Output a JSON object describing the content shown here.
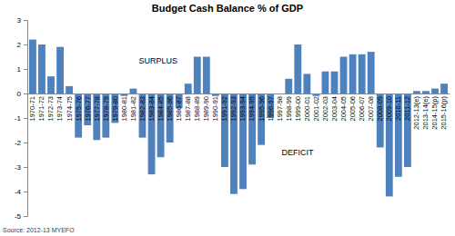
{
  "chart_data": {
    "type": "bar",
    "title": "Budget Cash Balance % of GDP",
    "categories": [
      "1970-71",
      "1971-72",
      "1972-73",
      "1973-74",
      "1974-75",
      "1975-76",
      "1976-77",
      "1977-78",
      "1978-79",
      "1979-80",
      "1980-81",
      "1981-82",
      "1982-83",
      "1983-84",
      "1984-85",
      "1985-86",
      "1986-87",
      "1987-88",
      "1988-89",
      "1989-90",
      "1990-91",
      "1991-92",
      "1992-93",
      "1993-94",
      "1994-95",
      "1995-96",
      "1996-97",
      "1997-98",
      "1998-99",
      "1999-00",
      "2000-01",
      "2001-02",
      "2002-03",
      "2003-04",
      "2004-05",
      "2005-06",
      "2006-07",
      "2007-08",
      "2008-09",
      "2009-10",
      "2010-11",
      "2011-12",
      "2012-13(e)",
      "2013-14(e)",
      "2014-15(p)",
      "2015-16(p)"
    ],
    "values": [
      2.2,
      2.0,
      0.7,
      1.9,
      0.3,
      -1.8,
      -1.3,
      -1.9,
      -1.8,
      -1.2,
      -0.1,
      0.2,
      -1.8,
      -3.3,
      -2.6,
      -2.0,
      -0.6,
      0.4,
      1.5,
      1.5,
      -0.1,
      -3.0,
      -4.1,
      -3.9,
      -2.9,
      -2.1,
      -1.0,
      0.0,
      0.6,
      2.0,
      0.8,
      -0.1,
      0.9,
      0.9,
      1.5,
      1.6,
      1.6,
      1.7,
      -2.2,
      -4.2,
      -3.4,
      -3.0,
      0.1,
      0.1,
      0.2,
      0.4
    ],
    "color": "#4f81bd",
    "ylim": [
      -5,
      3
    ],
    "yticks": [
      -5,
      -4,
      -3,
      -2,
      -1,
      0,
      1,
      2,
      3
    ],
    "grid": false,
    "annotations": [
      "SURPLUS",
      "DEFICIT"
    ],
    "source": "Source: 2012-13 MYEFO"
  }
}
